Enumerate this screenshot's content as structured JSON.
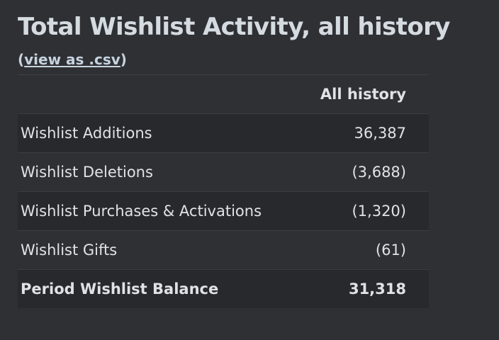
{
  "title": "Total Wishlist Activity, all history",
  "csv": {
    "open_paren": "(",
    "link_label": "view as .csv",
    "close_paren": ")"
  },
  "table": {
    "column_header": "All history",
    "rows": [
      {
        "label": "Wishlist Additions",
        "value": "36,387"
      },
      {
        "label": "Wishlist Deletions",
        "value": "(3,688)"
      },
      {
        "label": "Wishlist Purchases & Activations",
        "value": "(1,320)"
      },
      {
        "label": "Wishlist Gifts",
        "value": "(61)"
      }
    ],
    "total": {
      "label": "Period Wishlist Balance",
      "value": "31,318"
    }
  },
  "colors": {
    "background": "#2f3034",
    "row_alt": "#28292d",
    "text": "#dfe3e6",
    "link": "#c6d4df"
  }
}
